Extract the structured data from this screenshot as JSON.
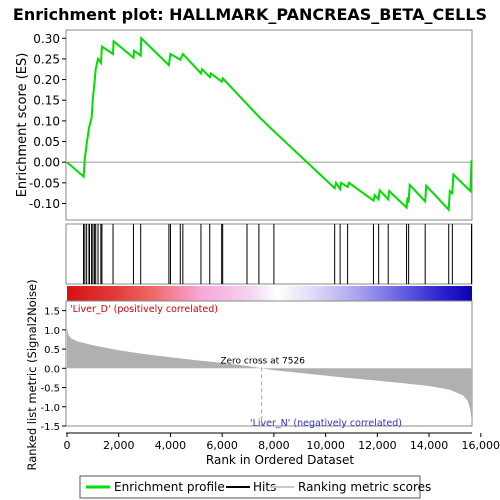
{
  "chart_data": {
    "type": "line",
    "title": "Enrichment plot: HALLMARK_PANCREAS_BETA_CELLS",
    "es_panel": {
      "ylabel": "Enrichment score (ES)",
      "ylim": [
        -0.14,
        0.32
      ],
      "yticks": [
        "0.30",
        "0.25",
        "0.20",
        "0.15",
        "0.10",
        "0.05",
        "0.00",
        "-0.05",
        "-0.10"
      ],
      "ytick_values": [
        0.3,
        0.25,
        0.2,
        0.15,
        0.1,
        0.05,
        0.0,
        -0.05,
        -0.1
      ],
      "series_color": "#00dd00",
      "points": [
        [
          0,
          0.0
        ],
        [
          640,
          -0.035
        ],
        [
          690,
          0.008
        ],
        [
          760,
          0.045
        ],
        [
          850,
          0.083
        ],
        [
          950,
          0.108
        ],
        [
          1000,
          0.155
        ],
        [
          1060,
          0.19
        ],
        [
          1110,
          0.225
        ],
        [
          1200,
          0.25
        ],
        [
          1310,
          0.24
        ],
        [
          1350,
          0.28
        ],
        [
          1780,
          0.262
        ],
        [
          1800,
          0.293
        ],
        [
          2570,
          0.253
        ],
        [
          2590,
          0.27
        ],
        [
          2850,
          0.258
        ],
        [
          2870,
          0.3
        ],
        [
          3940,
          0.235
        ],
        [
          4000,
          0.262
        ],
        [
          4380,
          0.248
        ],
        [
          4480,
          0.262
        ],
        [
          5180,
          0.215
        ],
        [
          5220,
          0.225
        ],
        [
          5520,
          0.206
        ],
        [
          5560,
          0.215
        ],
        [
          5980,
          0.195
        ],
        [
          6020,
          0.203
        ],
        [
          7420,
          0.11
        ],
        [
          8000,
          0.075
        ],
        [
          10350,
          -0.063
        ],
        [
          10400,
          -0.05
        ],
        [
          10560,
          -0.065
        ],
        [
          10600,
          -0.05
        ],
        [
          10850,
          -0.06
        ],
        [
          10900,
          -0.05
        ],
        [
          11850,
          -0.093
        ],
        [
          11900,
          -0.08
        ],
        [
          12050,
          -0.09
        ],
        [
          12090,
          -0.068
        ],
        [
          12420,
          -0.09
        ],
        [
          12460,
          -0.07
        ],
        [
          13130,
          -0.11
        ],
        [
          13170,
          -0.085
        ],
        [
          13210,
          -0.098
        ],
        [
          13250,
          -0.055
        ],
        [
          13850,
          -0.095
        ],
        [
          13890,
          -0.057
        ],
        [
          14760,
          -0.115
        ],
        [
          14800,
          -0.07
        ],
        [
          14900,
          -0.075
        ],
        [
          14940,
          -0.03
        ],
        [
          15600,
          -0.07
        ],
        [
          15640,
          0.005
        ]
      ]
    },
    "hits": [
      640,
      690,
      760,
      850,
      870,
      950,
      1000,
      1060,
      1110,
      1200,
      1310,
      1350,
      1780,
      2570,
      2850,
      3940,
      4000,
      4380,
      4480,
      5180,
      5520,
      5980,
      6020,
      6960,
      7420,
      8000,
      10350,
      10560,
      10850,
      11850,
      12050,
      12420,
      13130,
      13210,
      13850,
      14760,
      14900,
      15640
    ],
    "colorbar": {
      "stops": [
        [
          0,
          "#d71010"
        ],
        [
          0.12,
          "#e33b3b"
        ],
        [
          0.22,
          "#ef6d6d"
        ],
        [
          0.33,
          "#f8a6d9"
        ],
        [
          0.45,
          "#f4d3ef"
        ],
        [
          0.52,
          "#ffffff"
        ],
        [
          0.62,
          "#d9d5f6"
        ],
        [
          0.72,
          "#a8a2ee"
        ],
        [
          0.82,
          "#6b63e5"
        ],
        [
          0.92,
          "#2d25cf"
        ],
        [
          1,
          "#0a00b8"
        ]
      ]
    },
    "metric_panel": {
      "ylabel": "Ranked list metric (Signal2Noise)",
      "ylim": [
        -1.5,
        1.75
      ],
      "yticks": [
        "1.5",
        "1.0",
        "0.5",
        "0.0",
        "-0.5",
        "-1.0",
        "-1.5"
      ],
      "ytick_values": [
        1.5,
        1.0,
        0.5,
        0.0,
        -0.5,
        -1.0,
        -1.5
      ],
      "fill_color": "#b0b0b0",
      "profile": [
        [
          0,
          1.05
        ],
        [
          50,
          0.88
        ],
        [
          150,
          0.78
        ],
        [
          400,
          0.7
        ],
        [
          1000,
          0.6
        ],
        [
          2000,
          0.47
        ],
        [
          3000,
          0.37
        ],
        [
          4000,
          0.29
        ],
        [
          5000,
          0.21
        ],
        [
          6000,
          0.14
        ],
        [
          7000,
          0.06
        ],
        [
          7526,
          0.0
        ],
        [
          8000,
          -0.05
        ],
        [
          9000,
          -0.12
        ],
        [
          10000,
          -0.19
        ],
        [
          11000,
          -0.26
        ],
        [
          12000,
          -0.32
        ],
        [
          13000,
          -0.39
        ],
        [
          14000,
          -0.46
        ],
        [
          14800,
          -0.56
        ],
        [
          15300,
          -0.7
        ],
        [
          15500,
          -0.85
        ],
        [
          15600,
          -1.1
        ],
        [
          15660,
          -1.42
        ]
      ],
      "zero_cross_label": "Zero cross at 7526",
      "zero_cross_x": 7526,
      "pos_label": "'Liver_D' (positively correlated)",
      "neg_label": "'Liver_N' (negatively correlated)"
    },
    "x_axis": {
      "xlabel": "Rank in Ordered Dataset",
      "xlim": [
        0,
        15660
      ],
      "xticks": [
        "0",
        "2,000",
        "4,000",
        "6,000",
        "8,000",
        "10,000",
        "12,000",
        "14,000",
        "16,000"
      ],
      "xtick_values": [
        0,
        2000,
        4000,
        6000,
        8000,
        10000,
        12000,
        14000,
        16000
      ]
    },
    "legend": {
      "placement": "bottom",
      "items": [
        {
          "label": "Enrichment profile",
          "color": "#00dd00"
        },
        {
          "label": "Hits",
          "color": "#000000"
        },
        {
          "label": "Ranking metric scores",
          "color": "#c8c8c8"
        }
      ]
    }
  }
}
